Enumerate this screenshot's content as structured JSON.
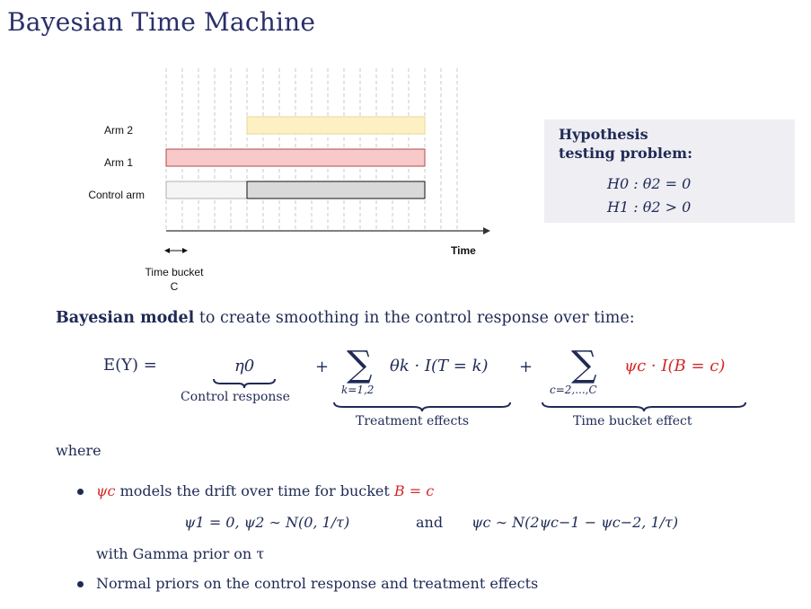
{
  "slide": {
    "title": "Bayesian Time Machine"
  },
  "diagram": {
    "arms": [
      "Arm 2",
      "Arm 1",
      "Control arm"
    ],
    "time_label": "Time",
    "bucket_label_line1": "Time bucket",
    "bucket_label_line2": "C",
    "colors": {
      "arm2": "#fdf1c4",
      "arm1": "#f7c9c9",
      "control": "#d9d9d9"
    }
  },
  "hypothesis": {
    "title_line1": "Hypothesis",
    "title_line2": "testing problem:",
    "h0": "H0 : θ2 = 0",
    "h1": "H1 : θ2 > 0"
  },
  "model": {
    "intro_bold": "Bayesian model",
    "intro_rest": " to create smoothing in the control response over time:",
    "lhs": "E(Y) =",
    "eta": "η0",
    "control_response": "Control response",
    "plus1": "+",
    "sum1_lower": "k=1,2",
    "term1": "θk · I(T = k)",
    "plus2": "+",
    "sum2_lower": "c=2,...,C",
    "term2": "ψc · I(B = c)",
    "treatment_effects": "Treatment effects",
    "time_bucket_effect": "Time bucket effect"
  },
  "where": "where",
  "bullets": {
    "b1_psi": "ψc",
    "b1_text": " models the drift over time for bucket ",
    "b1_eq": "B = c",
    "eq_line_left": "ψ1 = 0,   ψ2 ∼ N(0, 1/τ)",
    "eq_and": "and",
    "eq_line_right": "ψc ∼ N(2ψc−1 − ψc−2, 1/τ)",
    "gamma_text": "with Gamma prior on τ",
    "b2_text": "Normal priors on the control response and treatment effects"
  }
}
